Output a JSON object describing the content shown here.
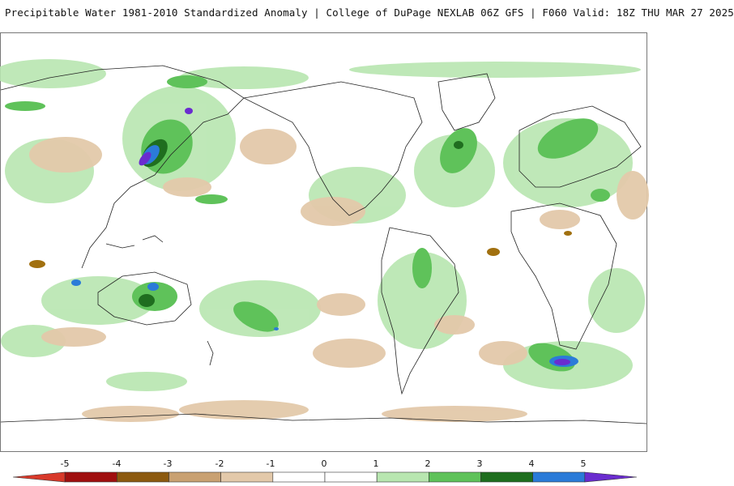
{
  "header": {
    "title": "Precipitable Water 1981-2010 Standardized Anomaly | College of DuPage NEXLAB  06Z GFS | F060 Valid: 18Z THU MAR 27 2025"
  },
  "colors": {
    "dry_strong": "#a1700f",
    "dry_mid": "#c9a172",
    "dry_light": "#e3c9aa",
    "wet_light": "#b8e6b0",
    "wet_mid": "#5fc25a",
    "wet_strong": "#2d9a2d",
    "wet_dark": "#176617",
    "wet_blue": "#2b7bd8",
    "wet_purple": "#6a2ccf",
    "coast": "#222222"
  },
  "colorbar": {
    "labels": [
      "-5",
      "-4",
      "-3",
      "-2",
      "-1",
      "0",
      "1",
      "2",
      "3",
      "4",
      "5"
    ],
    "segments": [
      "#d8392a",
      "#a01010",
      "#8c5a10",
      "#c9a172",
      "#e3c9aa",
      "#ffffff",
      "#ffffff",
      "#b8e6b0",
      "#5fc25a",
      "#1f6e1f",
      "#2b7bd8",
      "#6a2ccf"
    ]
  }
}
